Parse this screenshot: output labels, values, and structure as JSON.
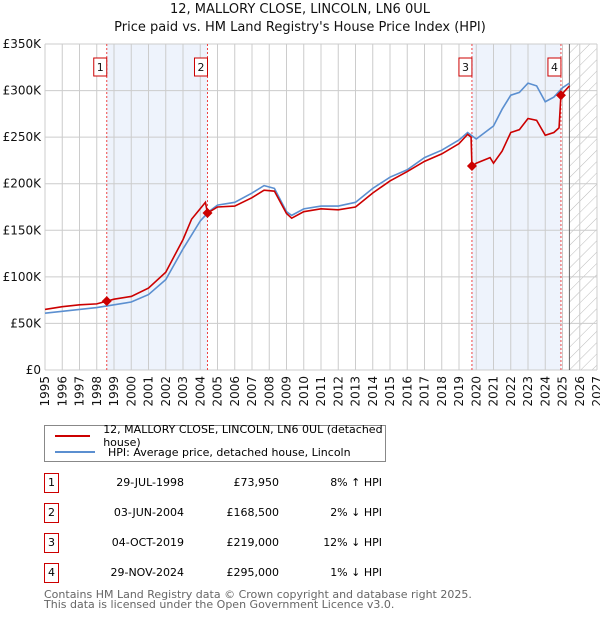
{
  "chart_data": {
    "type": "line",
    "title": "12, MALLORY CLOSE, LINCOLN, LN6 0UL",
    "subtitle": "Price paid vs. HM Land Registry's House Price Index (HPI)",
    "xlim": [
      1995,
      2027
    ],
    "ylim": [
      0,
      350000
    ],
    "x_ticks": [
      "1995",
      "1996",
      "1997",
      "1998",
      "1999",
      "2000",
      "2001",
      "2002",
      "2003",
      "2004",
      "2005",
      "2006",
      "2007",
      "2008",
      "2009",
      "2010",
      "2011",
      "2012",
      "2013",
      "2014",
      "2015",
      "2016",
      "2017",
      "2018",
      "2019",
      "2020",
      "2021",
      "2022",
      "2023",
      "2024",
      "2025",
      "2026",
      "2027"
    ],
    "y_ticks": [
      {
        "v": 0,
        "label": "£0"
      },
      {
        "v": 50000,
        "label": "£50K"
      },
      {
        "v": 100000,
        "label": "£100K"
      },
      {
        "v": 150000,
        "label": "£150K"
      },
      {
        "v": 200000,
        "label": "£200K"
      },
      {
        "v": 250000,
        "label": "£250K"
      },
      {
        "v": 300000,
        "label": "£300K"
      },
      {
        "v": 350000,
        "label": "£350K"
      }
    ],
    "grid": true,
    "shaded_ranges": [
      [
        1998.58,
        2004.42
      ],
      [
        2019.75,
        2024.91
      ]
    ],
    "forecast_start": 2025.4,
    "series": [
      {
        "name": "12, MALLORY CLOSE, LINCOLN, LN6 0UL (detached house)",
        "color": "#cc0000",
        "x": [
          1995,
          1996,
          1997,
          1998,
          1998.58,
          1999,
          2000,
          2001,
          2002,
          2003,
          2003.5,
          2004.3,
          2004.42,
          2005,
          2006,
          2007,
          2007.7,
          2008.3,
          2009,
          2009.3,
          2010,
          2011,
          2012,
          2013,
          2014,
          2015,
          2016,
          2017,
          2018,
          2019,
          2019.5,
          2019.7,
          2019.75,
          2020,
          2020.8,
          2021,
          2021.5,
          2022,
          2022.5,
          2023,
          2023.5,
          2024,
          2024.5,
          2024.8,
          2024.91,
          2025.4
        ],
        "y": [
          65000,
          68000,
          70000,
          71000,
          73950,
          76000,
          79000,
          88000,
          105000,
          140000,
          162000,
          180000,
          168500,
          175000,
          176000,
          185000,
          193000,
          192000,
          168000,
          163000,
          170000,
          173000,
          172000,
          175000,
          190000,
          203000,
          213000,
          224000,
          232000,
          243000,
          253000,
          250000,
          219000,
          222000,
          228000,
          222000,
          235000,
          255000,
          258000,
          270000,
          268000,
          252000,
          255000,
          260000,
          295000,
          305000
        ]
      },
      {
        "name": "HPI: Average price, detached house, Lincoln",
        "color": "#5b8fd0",
        "x": [
          1995,
          1996,
          1997,
          1998,
          1999,
          2000,
          2001,
          2002,
          2003,
          2004,
          2004.5,
          2005,
          2006,
          2007,
          2007.7,
          2008.3,
          2009,
          2009.3,
          2010,
          2011,
          2012,
          2013,
          2014,
          2015,
          2016,
          2017,
          2018,
          2019,
          2019.5,
          2020,
          2021,
          2021.5,
          2022,
          2022.5,
          2023,
          2023.5,
          2024,
          2024.5,
          2025,
          2025.4
        ],
        "y": [
          61000,
          63000,
          65000,
          67000,
          70000,
          73000,
          81000,
          97000,
          130000,
          160000,
          170000,
          177000,
          180000,
          190000,
          198000,
          195000,
          170000,
          166000,
          173000,
          176000,
          176000,
          180000,
          195000,
          207000,
          215000,
          228000,
          236000,
          247000,
          255000,
          248000,
          262000,
          280000,
          295000,
          298000,
          308000,
          305000,
          288000,
          293000,
          303000,
          308000
        ]
      }
    ],
    "sales": [
      {
        "n": "1",
        "x": 1998.58,
        "y": 73950,
        "date": "29-JUL-1998",
        "price": "£73,950",
        "hpi": "8% ↑ HPI"
      },
      {
        "n": "2",
        "x": 2004.42,
        "y": 168500,
        "date": "03-JUN-2004",
        "price": "£168,500",
        "hpi": "2% ↓ HPI"
      },
      {
        "n": "3",
        "x": 2019.75,
        "y": 219000,
        "date": "04-OCT-2019",
        "price": "£219,000",
        "hpi": "12% ↓ HPI"
      },
      {
        "n": "4",
        "x": 2024.91,
        "y": 295000,
        "date": "29-NOV-2024",
        "price": "£295,000",
        "hpi": "1% ↓ HPI"
      }
    ]
  },
  "footer": {
    "line1": "Contains HM Land Registry data © Crown copyright and database right 2025.",
    "line2": "This data is licensed under the Open Government Licence v3.0."
  }
}
